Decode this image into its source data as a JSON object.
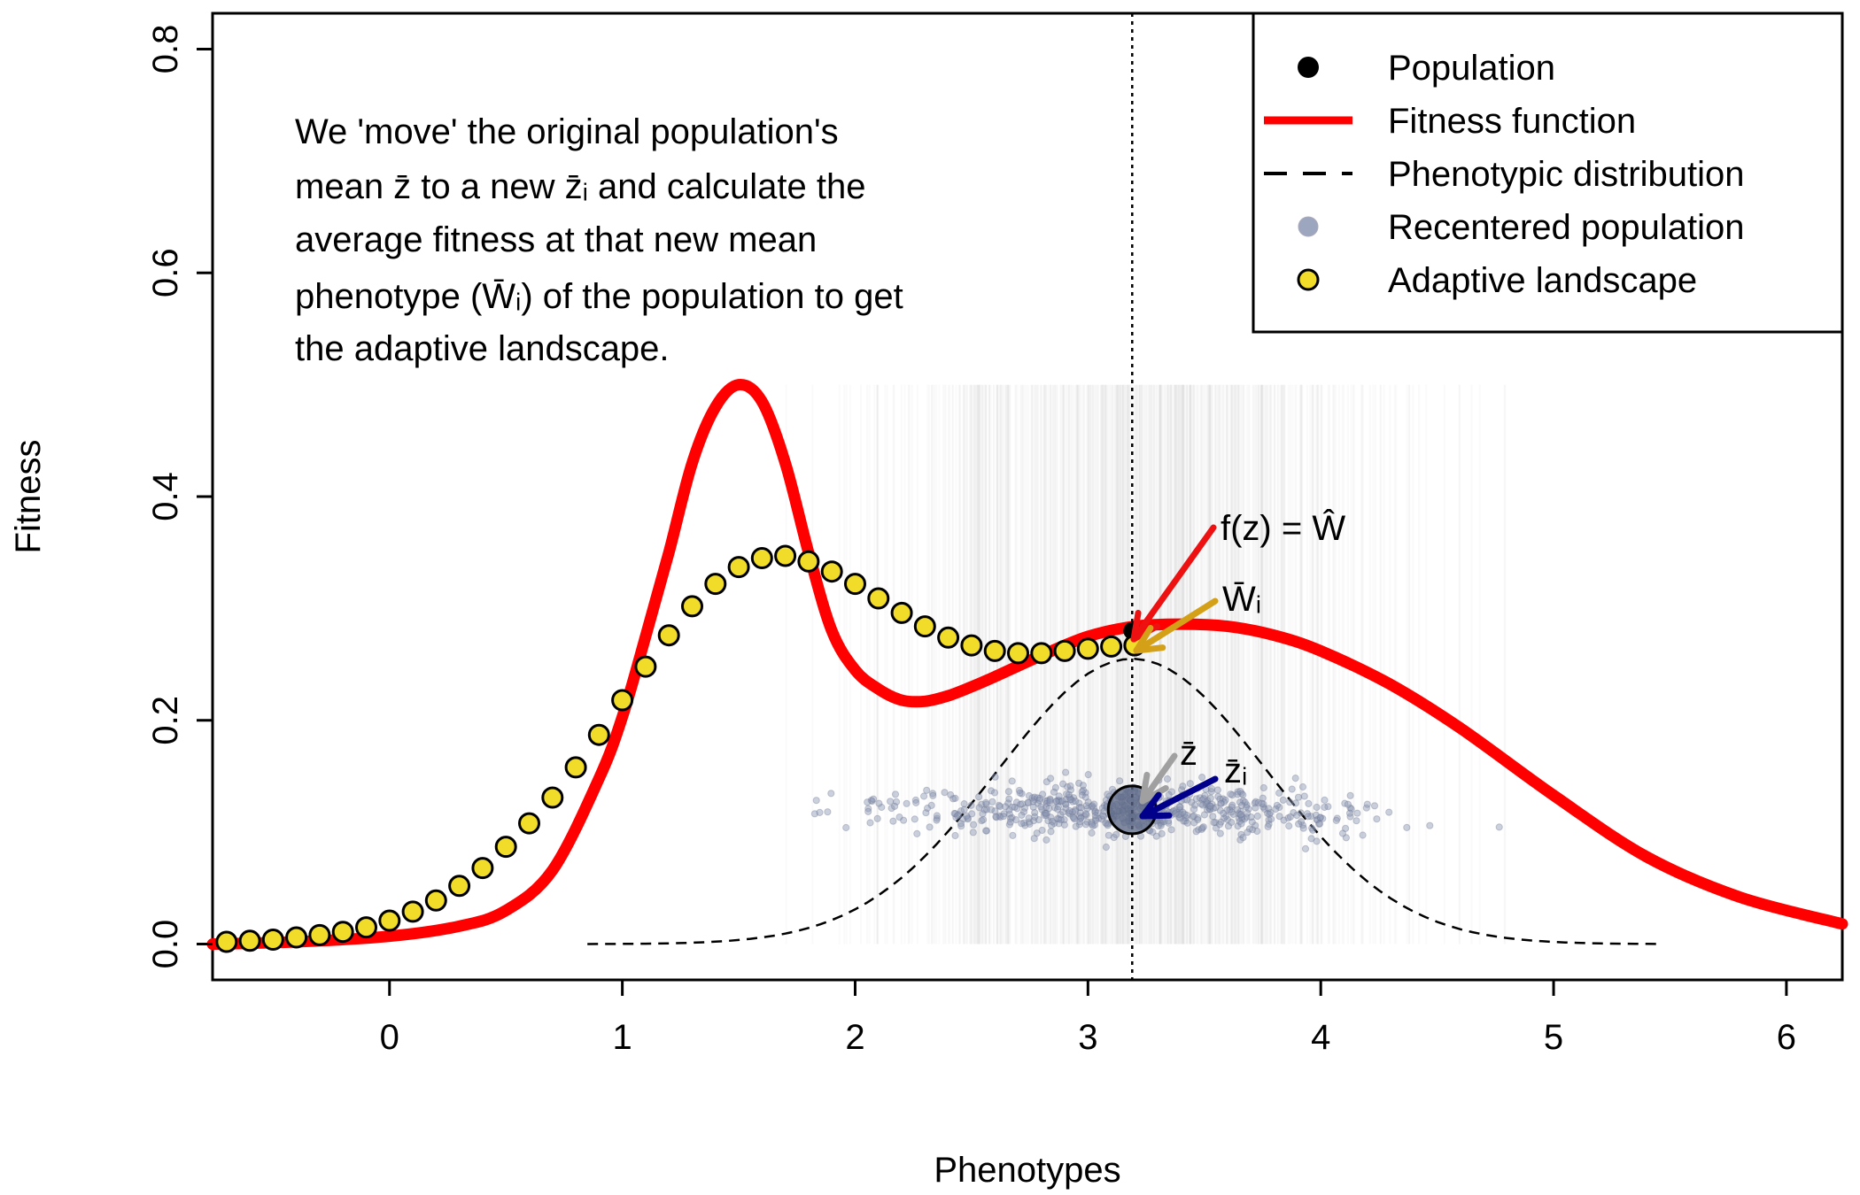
{
  "chart_data": {
    "type": "line",
    "xlabel": "Phenotypes",
    "ylabel": "Fitness",
    "xlim": [
      -0.76,
      6.24
    ],
    "ylim": [
      -0.032,
      0.832
    ],
    "x_ticks": [
      0,
      1,
      2,
      3,
      4,
      5,
      6
    ],
    "y_ticks": [
      0.0,
      0.2,
      0.4,
      0.6,
      0.8
    ],
    "x_tick_labels": [
      "0",
      "1",
      "2",
      "3",
      "4",
      "5",
      "6"
    ],
    "y_tick_labels": [
      "0.0",
      "0.2",
      "0.4",
      "0.6",
      "0.8"
    ],
    "legend": {
      "placement": "top-right",
      "entries": [
        "Population",
        "Fitness function",
        "Phenotypic distribution",
        "Recentered population",
        "Adaptive landscape"
      ]
    },
    "population_mean": 3.19,
    "population_fitness": 0.28,
    "fitness_function": {
      "color": "#ff0000",
      "x": [
        -0.76,
        -0.4,
        0.0,
        0.3,
        0.5,
        0.7,
        0.9,
        1.0,
        1.1,
        1.2,
        1.3,
        1.4,
        1.5,
        1.6,
        1.7,
        1.8,
        1.9,
        2.0,
        2.1,
        2.2,
        2.3,
        2.4,
        2.5,
        2.6,
        2.8,
        3.0,
        3.2,
        3.4,
        3.6,
        3.8,
        4.0,
        4.3,
        4.6,
        5.0,
        5.4,
        5.8,
        6.24
      ],
      "y": [
        0.0,
        0.002,
        0.007,
        0.016,
        0.03,
        0.066,
        0.148,
        0.203,
        0.275,
        0.35,
        0.43,
        0.48,
        0.5,
        0.485,
        0.43,
        0.35,
        0.28,
        0.245,
        0.228,
        0.218,
        0.217,
        0.222,
        0.23,
        0.239,
        0.258,
        0.275,
        0.284,
        0.286,
        0.284,
        0.276,
        0.262,
        0.232,
        0.193,
        0.133,
        0.078,
        0.042,
        0.018
      ]
    },
    "adaptive_landscape": {
      "color": "#f2dc2a",
      "x": [
        -0.7,
        -0.6,
        -0.5,
        -0.4,
        -0.3,
        -0.2,
        -0.1,
        0.0,
        0.1,
        0.2,
        0.3,
        0.4,
        0.5,
        0.6,
        0.7,
        0.8,
        0.9,
        1.0,
        1.1,
        1.2,
        1.3,
        1.4,
        1.5,
        1.6,
        1.7,
        1.8,
        1.9,
        2.0,
        2.1,
        2.2,
        2.3,
        2.4,
        2.5,
        2.6,
        2.7,
        2.8,
        2.9,
        3.0,
        3.1,
        3.2
      ],
      "y": [
        0.002,
        0.003,
        0.004,
        0.006,
        0.008,
        0.011,
        0.015,
        0.021,
        0.029,
        0.039,
        0.052,
        0.068,
        0.087,
        0.108,
        0.131,
        0.158,
        0.187,
        0.218,
        0.248,
        0.276,
        0.302,
        0.322,
        0.337,
        0.345,
        0.347,
        0.342,
        0.333,
        0.322,
        0.309,
        0.296,
        0.284,
        0.274,
        0.267,
        0.262,
        0.26,
        0.26,
        0.262,
        0.264,
        0.266,
        0.267
      ]
    },
    "phenotypic_distribution": {
      "x_range": [
        0.85,
        5.45
      ],
      "mean": 3.19,
      "sd": 0.58,
      "peak": 0.255
    },
    "recentered_population": {
      "color": "#8c96b4",
      "mean_x": 3.19,
      "mean_y": 0.12,
      "x_range": [
        1.5,
        4.8
      ],
      "y_range": [
        0.09,
        0.15
      ]
    },
    "annotations": {
      "paragraph_lines": [
        "We 'move' the original population's",
        "mean z̄ to a new z̄ᵢ and calculate the",
        "average fitness at that new mean",
        "phenotype (W̄ᵢ) of the population to get",
        "the adaptive landscape."
      ],
      "fz_label": "f(z) = Ŵ",
      "wi_label": "W̄ᵢ",
      "zbar_label": "z̄",
      "zi_label": "z̄ᵢ"
    },
    "colors": {
      "fitness": "#ff0000",
      "landscape_fill": "#f2dc2a",
      "recentered": "#8c96b4",
      "arrow_red": "#ee1111",
      "arrow_gold": "#d4a017",
      "arrow_grey": "#a0a0a0",
      "arrow_navy": "#00008b"
    }
  }
}
